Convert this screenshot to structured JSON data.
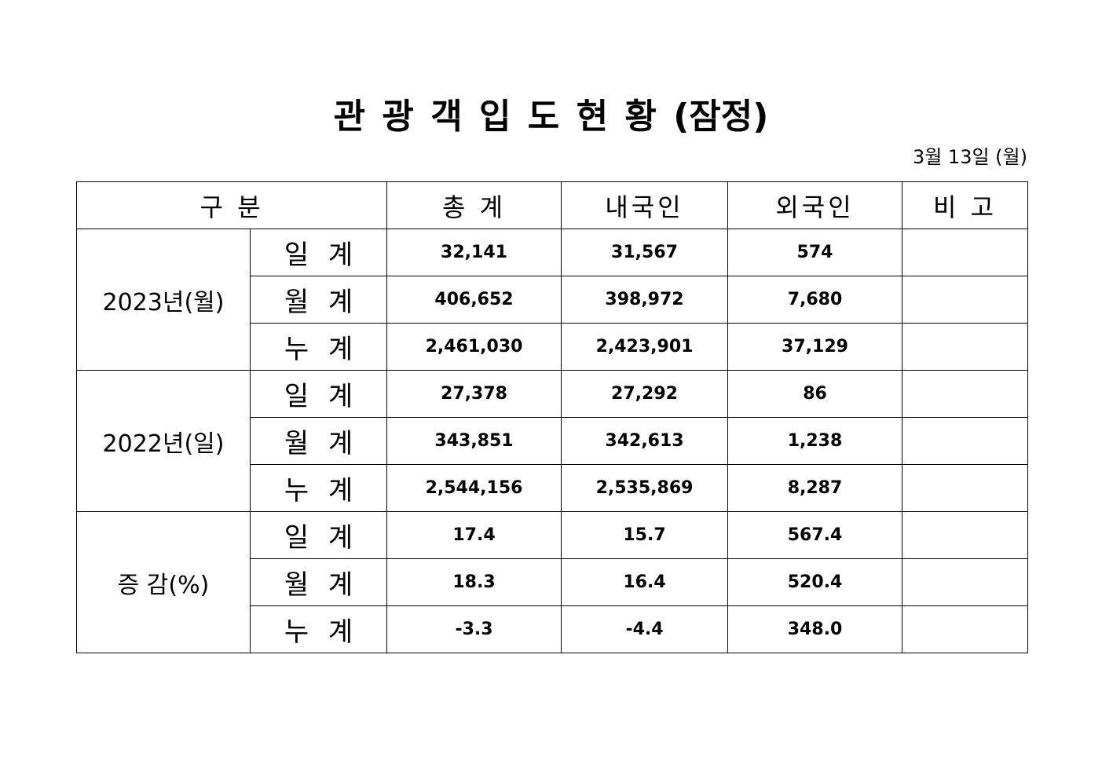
{
  "header": {
    "title": "관 광 객 입 도 현 황 (잠정)",
    "date": "3월 13일 (월)"
  },
  "table": {
    "columns": [
      "구 분",
      "총 계",
      "내국인",
      "외국인",
      "비 고"
    ],
    "groups": [
      {
        "label": "2023년(월)",
        "rows": [
          {
            "item": "일 계",
            "values": [
              "32,141",
              "31,567",
              "574"
            ]
          },
          {
            "item": "월 계",
            "values": [
              "406,652",
              "398,972",
              "7,680"
            ]
          },
          {
            "item": "누 계",
            "values": [
              "2,461,030",
              "2,423,901",
              "37,129"
            ]
          }
        ]
      },
      {
        "label": "2022년(일)",
        "rows": [
          {
            "item": "일 계",
            "values": [
              "27,378",
              "27,292",
              "86"
            ]
          },
          {
            "item": "월 계",
            "values": [
              "343,851",
              "342,613",
              "1,238"
            ]
          },
          {
            "item": "누 계",
            "values": [
              "2,544,156",
              "2,535,869",
              "8,287"
            ]
          }
        ]
      },
      {
        "label": "증 감(%)",
        "rows": [
          {
            "item": "일 계",
            "values": [
              "17.4",
              "15.7",
              "567.4"
            ]
          },
          {
            "item": "월 계",
            "values": [
              "18.3",
              "16.4",
              "520.4"
            ]
          },
          {
            "item": "누 계",
            "values": [
              "-3.3",
              "-4.4",
              "348.0"
            ]
          }
        ]
      }
    ]
  }
}
